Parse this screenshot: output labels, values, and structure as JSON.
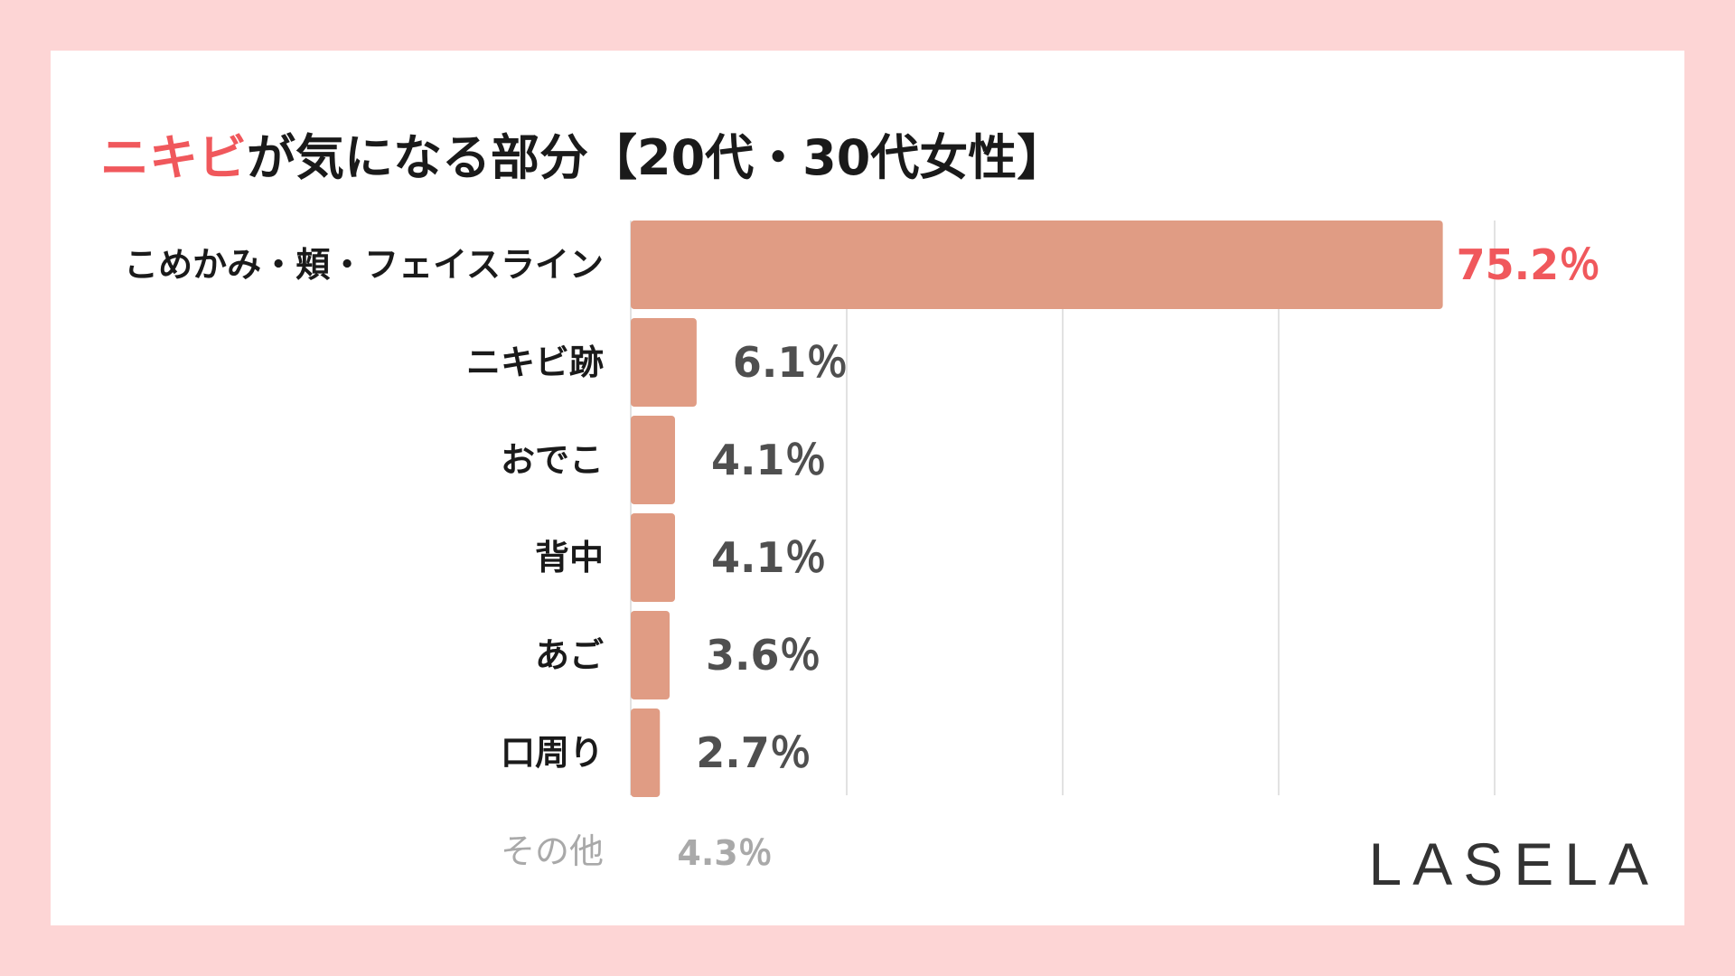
{
  "colors": {
    "background": "#fdd5d5",
    "card": "#ffffff",
    "bar": "#e09c84",
    "accent": "#f0585c",
    "value_text": "#4f4f4f",
    "muted_text": "#a9a9a9",
    "gridline": "#d9d9d9"
  },
  "title": {
    "accent": "ニキビ",
    "rest": "が気になる部分【20代・30代女性】"
  },
  "brand": {
    "logo": "LASELA"
  },
  "chart_data": {
    "type": "bar",
    "orientation": "horizontal",
    "title": "ニキビが気になる部分【20代・30代女性】",
    "unit": "%",
    "xlim": [
      0,
      80
    ],
    "grid": true,
    "categories": [
      "こめかみ・頬・フェイスライン",
      "ニキビ跡",
      "おでこ",
      "背中",
      "あご",
      "口周り"
    ],
    "values": [
      75.2,
      6.1,
      4.1,
      4.1,
      3.6,
      2.7
    ],
    "value_labels": [
      "75.2％",
      "6.1％",
      "4.1％",
      "4.1％",
      "3.6％",
      "2.7％"
    ],
    "other": {
      "label": "その他",
      "value": 4.3,
      "value_label": "4.3％"
    }
  }
}
